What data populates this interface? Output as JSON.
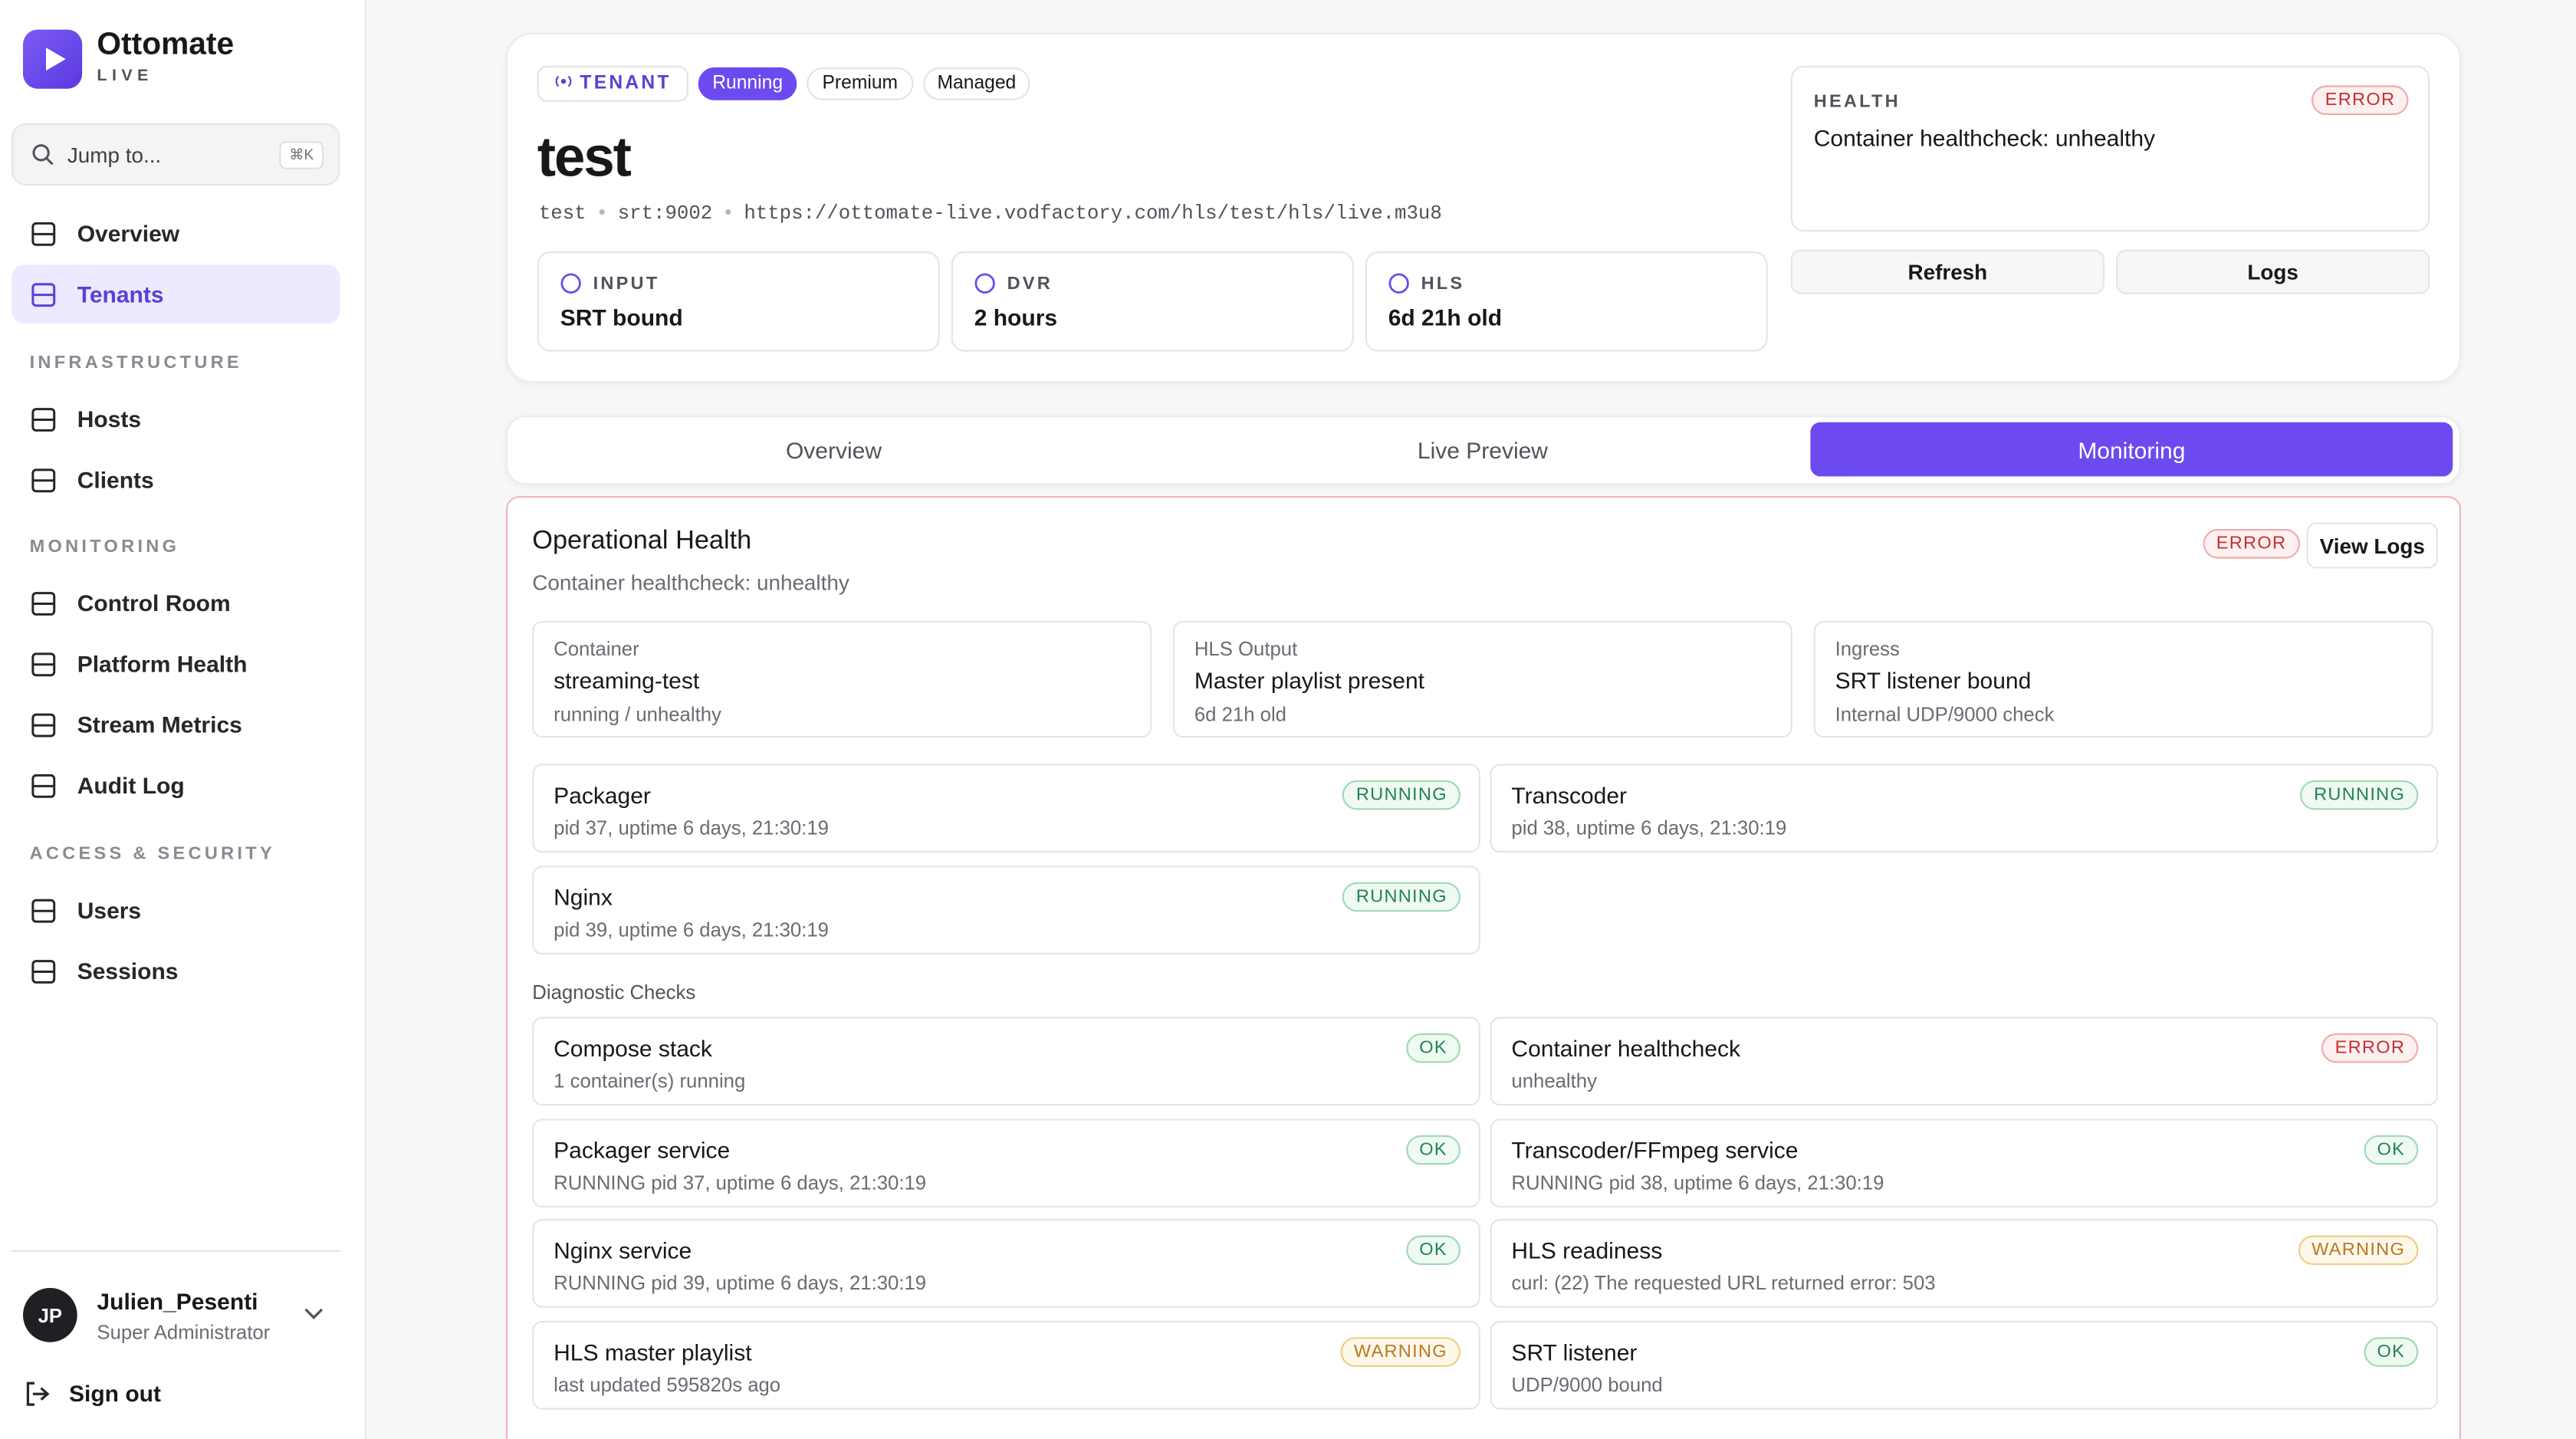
{
  "sidebar": {
    "brand": "Ottomate",
    "brand_sub": "LIVE",
    "search": "Jump to...",
    "search_shortcut": "⌘K",
    "nav": [
      "Overview",
      "Tenants"
    ],
    "sections": [
      {
        "title": "INFRASTRUCTURE",
        "items": [
          "Hosts",
          "Clients"
        ]
      },
      {
        "title": "MONITORING",
        "items": [
          "Control Room",
          "Platform Health",
          "Stream Metrics",
          "Audit Log"
        ]
      },
      {
        "title": "ACCESS & SECURITY",
        "items": [
          "Users",
          "Sessions"
        ]
      }
    ],
    "user": {
      "initials": "JP",
      "name": "Julien_Pesenti",
      "role": "Super Administrator"
    },
    "sign_out": "Sign out"
  },
  "header": {
    "tag": "TENANT",
    "badges": [
      "Running",
      "Premium",
      "Managed"
    ],
    "title": "test",
    "meta": [
      "test",
      "srt:9002",
      "https://ottomate-live.vodfactory.com/hls/test/hls/live.m3u8"
    ],
    "stats": [
      {
        "label": "INPUT",
        "value": "SRT bound"
      },
      {
        "label": "DVR",
        "value": "2 hours"
      },
      {
        "label": "HLS",
        "value": "6d 21h old"
      }
    ],
    "health": {
      "label": "HEALTH",
      "status": "ERROR",
      "message": "Container healthcheck: unhealthy"
    },
    "actions": [
      "Refresh",
      "Logs"
    ]
  },
  "tabs": [
    "Overview",
    "Live Preview",
    "Monitoring"
  ],
  "panel": {
    "title": "Operational Health",
    "subtitle": "Container healthcheck: unhealthy",
    "status": "ERROR",
    "action": "View Logs",
    "summary": [
      {
        "label": "Container",
        "value": "streaming-test",
        "detail": "running / unhealthy"
      },
      {
        "label": "HLS Output",
        "value": "Master playlist present",
        "detail": "6d 21h old"
      },
      {
        "label": "Ingress",
        "value": "SRT listener bound",
        "detail": "Internal UDP/9000 check"
      }
    ],
    "processes": [
      {
        "name": "Packager",
        "status": "RUNNING",
        "detail": "pid 37, uptime 6 days, 21:30:19"
      },
      {
        "name": "Transcoder",
        "status": "RUNNING",
        "detail": "pid 38, uptime 6 days, 21:30:19"
      },
      {
        "name": "Nginx",
        "status": "RUNNING",
        "detail": "pid 39, uptime 6 days, 21:30:19"
      }
    ],
    "checks_title": "Diagnostic Checks",
    "checks": [
      {
        "name": "Compose stack",
        "status": "OK",
        "detail": "1 container(s) running"
      },
      {
        "name": "Container healthcheck",
        "status": "ERROR",
        "detail": "unhealthy"
      },
      {
        "name": "Packager service",
        "status": "OK",
        "detail": "RUNNING pid 37, uptime 6 days, 21:30:19"
      },
      {
        "name": "Transcoder/FFmpeg service",
        "status": "OK",
        "detail": "RUNNING pid 38, uptime 6 days, 21:30:19"
      },
      {
        "name": "Nginx service",
        "status": "OK",
        "detail": "RUNNING pid 39, uptime 6 days, 21:30:19"
      },
      {
        "name": "HLS readiness",
        "status": "WARNING",
        "detail": "curl: (22) The requested URL returned error: 503"
      },
      {
        "name": "HLS master playlist",
        "status": "WARNING",
        "detail": "last updated 595820s ago"
      },
      {
        "name": "SRT listener",
        "status": "OK",
        "detail": "UDP/9000 bound"
      }
    ]
  }
}
